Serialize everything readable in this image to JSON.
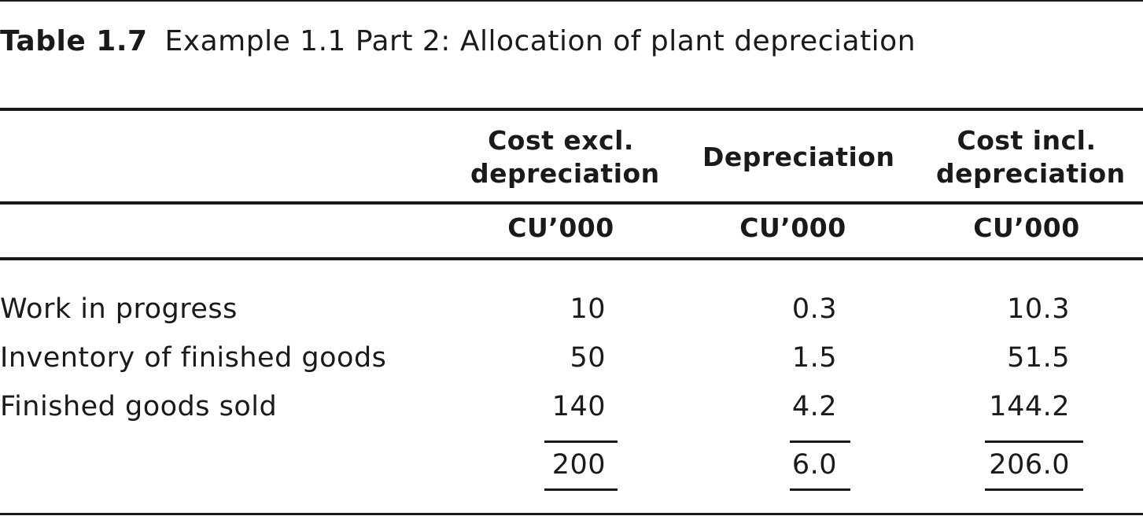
{
  "caption": {
    "number": "Table 1.7",
    "title": "Example 1.1 Part 2: Allocation of plant depreciation"
  },
  "columns": [
    {
      "line1": "Cost excl.",
      "line2": "depreciation",
      "unit": "CU’000"
    },
    {
      "line1": "Depreciation",
      "unit": "CU’000"
    },
    {
      "line1": "Cost incl.",
      "line2": "depreciation",
      "unit": "CU’000"
    }
  ],
  "rows": [
    {
      "label": "Work in progress",
      "values": [
        "10",
        "0.3",
        "10.3"
      ]
    },
    {
      "label": "Inventory of finished goods",
      "values": [
        "50",
        "1.5",
        "51.5"
      ]
    },
    {
      "label": "Finished goods sold",
      "values": [
        "140",
        "4.2",
        "144.2"
      ]
    }
  ],
  "totals": [
    "200",
    "6.0",
    "206.0"
  ]
}
